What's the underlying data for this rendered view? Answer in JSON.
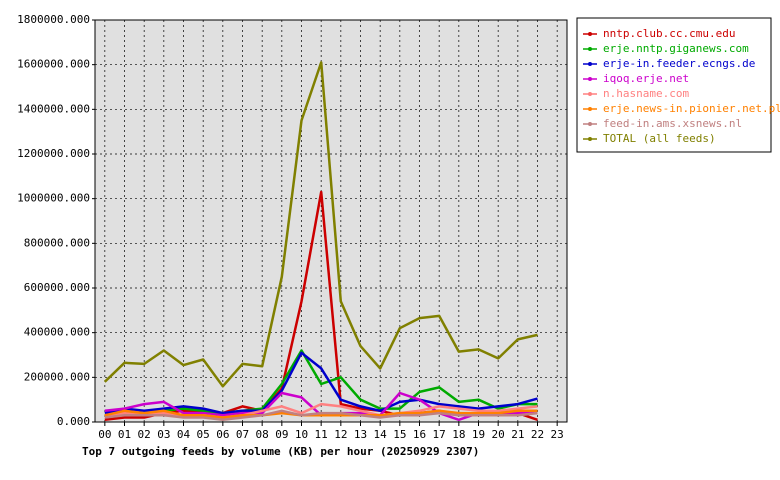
{
  "chart_data": {
    "type": "line",
    "title": "Top 7 outgoing feeds by volume (KB) per hour (20250929 2307)",
    "categories": [
      "00",
      "01",
      "02",
      "03",
      "04",
      "05",
      "06",
      "07",
      "08",
      "09",
      "10",
      "11",
      "12",
      "13",
      "14",
      "15",
      "16",
      "17",
      "18",
      "19",
      "20",
      "21",
      "22",
      "23"
    ],
    "ylim": [
      0,
      1800000
    ],
    "yticks": [
      {
        "value": 0,
        "label": "0.000"
      },
      {
        "value": 200000,
        "label": "200000.000"
      },
      {
        "value": 400000,
        "label": "400000.000"
      },
      {
        "value": 600000,
        "label": "600000.000"
      },
      {
        "value": 800000,
        "label": "800000.000"
      },
      {
        "value": 1000000,
        "label": "1000000.000"
      },
      {
        "value": 1200000,
        "label": "1200000.000"
      },
      {
        "value": 1400000,
        "label": "1400000.000"
      },
      {
        "value": 1600000,
        "label": "1600000.000"
      },
      {
        "value": 1800000,
        "label": "1800000.000"
      }
    ],
    "grid": true,
    "legend": "right",
    "series": [
      {
        "name": "nntp.club.cc.cmu.edu",
        "color": "#cc0000",
        "values": [
          10000,
          20000,
          20000,
          40000,
          50000,
          50000,
          40000,
          70000,
          50000,
          150000,
          540000,
          1030000,
          80000,
          60000,
          50000,
          30000,
          40000,
          50000,
          30000,
          30000,
          30000,
          40000,
          10000,
          null
        ]
      },
      {
        "name": "erje.nntp.giganews.com",
        "color": "#00aa00",
        "values": [
          30000,
          40000,
          40000,
          50000,
          60000,
          50000,
          40000,
          50000,
          60000,
          170000,
          320000,
          170000,
          200000,
          100000,
          60000,
          60000,
          135000,
          155000,
          90000,
          100000,
          60000,
          80000,
          80000,
          null
        ]
      },
      {
        "name": "erje-in.feeder.ecngs.de",
        "color": "#0000cc",
        "values": [
          40000,
          60000,
          50000,
          60000,
          70000,
          60000,
          40000,
          50000,
          50000,
          140000,
          310000,
          240000,
          100000,
          70000,
          50000,
          90000,
          100000,
          80000,
          70000,
          60000,
          70000,
          80000,
          105000,
          null
        ]
      },
      {
        "name": "iqoq.erje.net",
        "color": "#cc00cc",
        "values": [
          50000,
          60000,
          80000,
          90000,
          40000,
          40000,
          30000,
          40000,
          40000,
          130000,
          110000,
          30000,
          40000,
          40000,
          30000,
          130000,
          100000,
          40000,
          10000,
          40000,
          40000,
          40000,
          50000,
          null
        ]
      },
      {
        "name": "n.hasname.com",
        "color": "#ff8080",
        "values": [
          30000,
          40000,
          30000,
          40000,
          30000,
          30000,
          20000,
          30000,
          50000,
          70000,
          40000,
          80000,
          70000,
          50000,
          30000,
          40000,
          50000,
          70000,
          60000,
          50000,
          50000,
          60000,
          70000,
          null
        ]
      },
      {
        "name": "erje.news-in.pionier.net.pl",
        "color": "#ff8000",
        "values": [
          30000,
          50000,
          40000,
          50000,
          30000,
          30000,
          20000,
          30000,
          30000,
          40000,
          30000,
          30000,
          30000,
          30000,
          30000,
          40000,
          40000,
          50000,
          40000,
          40000,
          40000,
          50000,
          50000,
          null
        ]
      },
      {
        "name": "feed-in.ams.xsnews.nl",
        "color": "#c08080",
        "values": [
          20000,
          30000,
          30000,
          30000,
          20000,
          20000,
          10000,
          20000,
          30000,
          50000,
          30000,
          40000,
          40000,
          30000,
          20000,
          30000,
          30000,
          40000,
          30000,
          30000,
          30000,
          30000,
          40000,
          null
        ]
      },
      {
        "name": "TOTAL (all feeds)",
        "color": "#808000",
        "values": [
          180000,
          265000,
          260000,
          320000,
          255000,
          280000,
          160000,
          260000,
          250000,
          650000,
          1350000,
          1610000,
          540000,
          340000,
          240000,
          420000,
          465000,
          475000,
          315000,
          325000,
          285000,
          370000,
          390000,
          null
        ]
      }
    ]
  }
}
